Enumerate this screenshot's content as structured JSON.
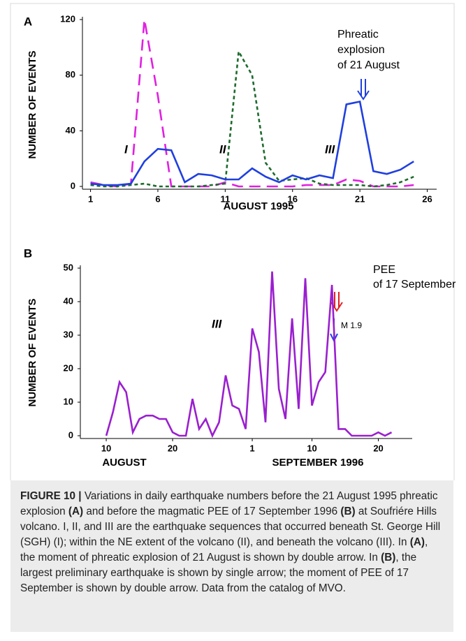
{
  "chart_data": [
    {
      "type": "line",
      "panel": "A",
      "ylabel": "NUMBER OF EVENTS",
      "xlabels": [
        "AUGUST 1995"
      ],
      "annotations": [
        "I",
        "II",
        "III",
        "Phreatic",
        "explosion",
        "of 21 August"
      ],
      "x": [
        1,
        2,
        3,
        4,
        5,
        6,
        7,
        8,
        9,
        10,
        11,
        12,
        13,
        14,
        15,
        16,
        17,
        18,
        19,
        20,
        21,
        22,
        23,
        24,
        25
      ],
      "series": [
        {
          "color": "#e020e0",
          "style": "long-dash",
          "values": [
            3,
            1,
            0,
            2,
            120,
            65,
            0,
            0,
            0,
            0,
            3,
            0,
            0,
            0,
            0,
            0,
            1,
            1,
            1,
            5,
            4,
            0,
            0,
            0,
            1
          ]
        },
        {
          "color": "#1e6b2e",
          "style": "dot",
          "values": [
            1,
            0,
            0,
            1,
            2,
            0,
            0,
            0,
            0,
            1,
            2,
            97,
            80,
            17,
            4,
            5,
            6,
            2,
            1,
            1,
            1,
            0,
            1,
            3,
            7
          ]
        },
        {
          "color": "#1f3fe0",
          "style": "solid",
          "values": [
            2,
            1,
            1,
            2,
            18,
            27,
            26,
            3,
            9,
            8,
            5,
            5,
            13,
            7,
            3,
            8,
            5,
            8,
            6,
            59,
            61,
            11,
            9,
            12,
            18
          ]
        }
      ],
      "xlim": [
        0.4,
        26.7
      ],
      "xticks": [
        1,
        6,
        11,
        16,
        21,
        26
      ],
      "ylim": [
        0,
        120
      ],
      "yticks": [
        0,
        40,
        80,
        120
      ]
    },
    {
      "type": "line",
      "panel": "B",
      "ylabel": "NUMBER OF EVENTS",
      "xlabels": [
        "AUGUST",
        "SEPTEMBER 1996"
      ],
      "annotations": [
        "III",
        "PEE",
        "of 17 September",
        "M 1.9"
      ],
      "x": [
        10,
        11,
        12,
        13,
        14,
        15,
        16,
        17,
        18,
        19,
        20,
        21,
        22,
        23,
        24,
        25,
        26,
        27,
        28,
        29,
        30,
        31,
        32,
        33,
        34,
        35,
        36,
        37,
        38,
        39,
        40,
        41,
        42,
        43,
        44,
        45,
        46,
        47,
        48,
        49,
        50,
        51,
        52,
        53
      ],
      "series": [
        {
          "color": "#9a1fcf",
          "style": "solid",
          "values": [
            0,
            7,
            16,
            13,
            1,
            5,
            6,
            6,
            5,
            5,
            1,
            0,
            0,
            11,
            2,
            5,
            0,
            4,
            18,
            9,
            8,
            2,
            32,
            25,
            4,
            49,
            14,
            5,
            35,
            8,
            47,
            9,
            16,
            19,
            45,
            2,
            2,
            0,
            0,
            0,
            0,
            1,
            0,
            1
          ]
        }
      ],
      "xlim": [
        6.1,
        56.1
      ],
      "xticks": [
        10,
        20,
        {
          "value": 32,
          "label": "1"
        },
        {
          "value": 41,
          "label": "10"
        },
        {
          "value": 51,
          "label": "20"
        }
      ],
      "ylim": [
        0,
        50
      ],
      "yticks": [
        0,
        10,
        20,
        30,
        40,
        50
      ]
    }
  ],
  "caption": {
    "parts": [
      {
        "text": "FIGURE 10 |",
        "bold": true
      },
      {
        "text": " Variations in daily earthquake numbers before the 21 August 1995 phreatic explosion ",
        "bold": false
      },
      {
        "text": "(A)",
        "bold": true
      },
      {
        "text": " and before the magmatic PEE of 17 September 1996 ",
        "bold": false
      },
      {
        "text": "(B)",
        "bold": true
      },
      {
        "text": " at Soufriére Hills volcano. I, II, and III are the earthquake sequences that occurred beneath St. George Hill (SGH) (I); within the NE extent of the volcano (II), and beneath the volcano (III). In ",
        "bold": false
      },
      {
        "text": "(A)",
        "bold": true
      },
      {
        "text": ", the moment of phreatic explosion of 21 August is shown by double arrow. In ",
        "bold": false
      },
      {
        "text": "(B)",
        "bold": true
      },
      {
        "text": ", the largest preliminary earthquake is shown by single arrow; the moment of PEE of 17 September is shown by double arrow. Data from the catalog of MVO.",
        "bold": false
      }
    ]
  }
}
